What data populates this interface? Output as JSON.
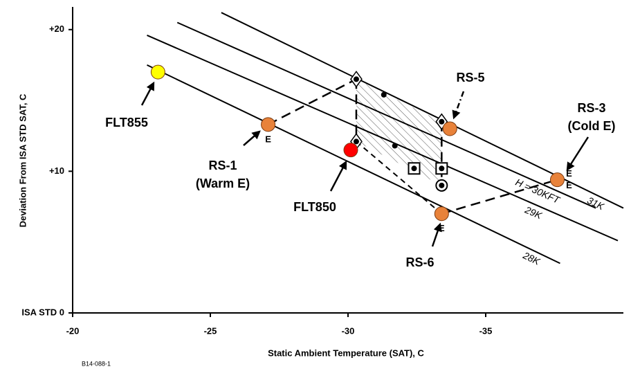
{
  "chart_data": {
    "type": "scatter",
    "x_label": "Static Ambient Temperature (SAT), C",
    "y_label": "Deviation From ISA STD SAT, C",
    "footnote": "B14-088-1",
    "xlim": [
      -20,
      -40
    ],
    "xticks": [
      -20,
      -25,
      -30,
      -35
    ],
    "ylim": [
      0,
      21.6
    ],
    "yticks": [
      {
        "value": 0,
        "label": "ISA STD 0"
      },
      {
        "value": 10,
        "label": "+10"
      },
      {
        "value": 20,
        "label": "+20"
      }
    ],
    "isolines": [
      {
        "label": "28K",
        "color": "#000000",
        "x": [
          -22.7,
          -37.7
        ],
        "y": [
          17.5,
          3.5
        ]
      },
      {
        "label": "29K",
        "color": "#000000",
        "x": [
          -22.7,
          -39.8
        ],
        "y": [
          19.6,
          5.1
        ]
      },
      {
        "label": "H = 30KFT",
        "color": "#000000",
        "x": [
          -23.8,
          -39.0
        ],
        "y": [
          20.5,
          7.4
        ]
      },
      {
        "label": "31K",
        "color": "#000000",
        "x": [
          -25.4,
          -40.0
        ],
        "y": [
          21.2,
          7.4
        ]
      }
    ],
    "points": [
      {
        "label": [
          "FLT855"
        ],
        "color": "#ffff00",
        "x": -23.1,
        "y": 17.0,
        "flags": []
      },
      {
        "label": [
          "RS-1",
          "(Warm E)"
        ],
        "color": "#e8823a",
        "x": -27.1,
        "y": 13.3,
        "flags": [
          "E"
        ]
      },
      {
        "label": [
          "RS-5"
        ],
        "color": "#e8823a",
        "x": -33.7,
        "y": 13.0,
        "flags": []
      },
      {
        "label": [
          "RS-3",
          "(Cold E)"
        ],
        "color": "#e8823a",
        "x": -37.6,
        "y": 9.4,
        "flags": [
          "E",
          "E"
        ]
      },
      {
        "label": [
          "RS-6"
        ],
        "color": "#e8823a",
        "x": -33.4,
        "y": 7.0,
        "flags": [
          "E"
        ]
      },
      {
        "label": [
          "FLT850"
        ],
        "color": "#ff0000",
        "x": -30.1,
        "y": 11.5,
        "flags": []
      }
    ],
    "markers": {
      "shape": [
        "diamond",
        "dot",
        "diamond",
        "diamond",
        "dot",
        "square",
        "square",
        "ring"
      ],
      "x": [
        -30.3,
        -31.3,
        -33.4,
        -30.3,
        -31.7,
        -32.4,
        -33.4,
        -33.4
      ],
      "y": [
        16.5,
        15.4,
        13.5,
        12.1,
        11.8,
        10.2,
        10.2,
        9.0
      ]
    }
  }
}
